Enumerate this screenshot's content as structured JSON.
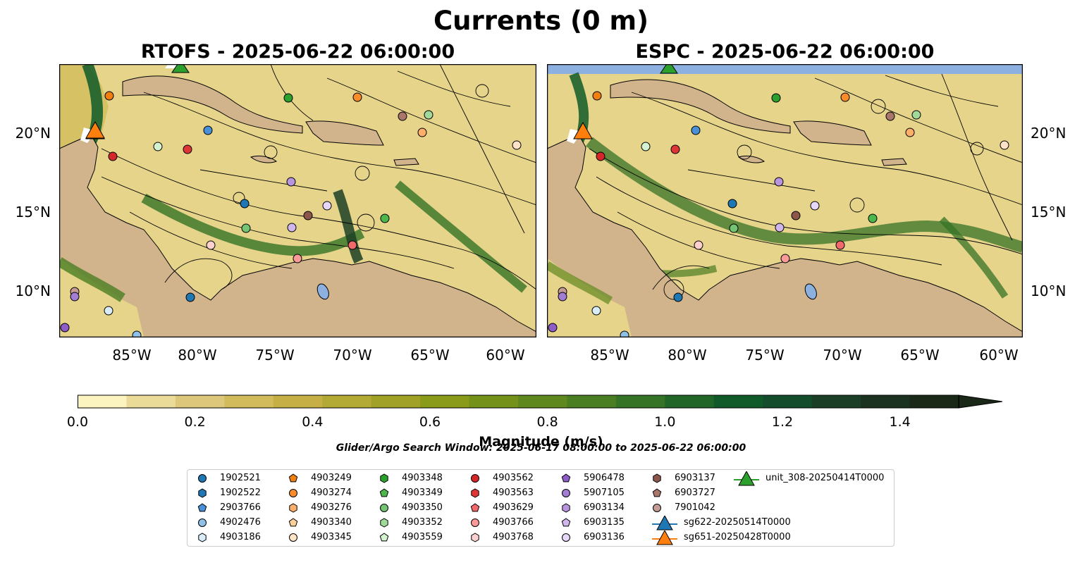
{
  "title": "Currents (0 m)",
  "panels": {
    "left_title": "RTOFS - 2025-06-22 06:00:00",
    "right_title": "ESPC - 2025-06-22 06:00:00"
  },
  "axes": {
    "lat_labels": [
      "20°N",
      "15°N",
      "10°N"
    ],
    "lon_labels": [
      "85°W",
      "80°W",
      "75°W",
      "70°W",
      "65°W",
      "60°W"
    ]
  },
  "colorbar": {
    "label": "Magnitude (m/s)",
    "ticks": [
      "0.0",
      "0.2",
      "0.4",
      "0.6",
      "0.8",
      "1.0",
      "1.2",
      "1.4"
    ],
    "range": [
      0,
      1.5
    ],
    "extend": "max",
    "colors": [
      "#fbf3c0",
      "#eadc98",
      "#ddc77a",
      "#d2bb5a",
      "#c6b045",
      "#b3a935",
      "#a1a027",
      "#8a9a1a",
      "#74911a",
      "#5f881e",
      "#4a7e22",
      "#357326",
      "#1f6628",
      "#0f5a28",
      "#134d2b",
      "#1b3f26",
      "#1c3220",
      "#1a2818"
    ]
  },
  "search_window": "Glider/Argo Search Window: 2025-06-17 08:00:00 to 2025-06-22 06:00:00",
  "legend_items": [
    {
      "label": "1902521",
      "marker": "circle",
      "color": "#1f77b4"
    },
    {
      "label": "1902522",
      "marker": "hexagon",
      "color": "#1f77b4"
    },
    {
      "label": "2903766",
      "marker": "pentagon",
      "color": "#4a90d9"
    },
    {
      "label": "4902476",
      "marker": "circle",
      "color": "#8fc1e8"
    },
    {
      "label": "4903186",
      "marker": "hexagon",
      "color": "#d8ecfa"
    },
    {
      "label": "4903249",
      "marker": "pentagon",
      "color": "#f07f10"
    },
    {
      "label": "4903274",
      "marker": "circle",
      "color": "#fb8c2a"
    },
    {
      "label": "4903276",
      "marker": "hexagon",
      "color": "#fdae6b"
    },
    {
      "label": "4903340",
      "marker": "pentagon",
      "color": "#fdcf9a"
    },
    {
      "label": "4903345",
      "marker": "circle",
      "color": "#fee3c8"
    },
    {
      "label": "4903348",
      "marker": "hexagon",
      "color": "#2ca02c"
    },
    {
      "label": "4903349",
      "marker": "pentagon",
      "color": "#4cb84c"
    },
    {
      "label": "4903350",
      "marker": "circle",
      "color": "#74c476"
    },
    {
      "label": "4903352",
      "marker": "hexagon",
      "color": "#a1d99b"
    },
    {
      "label": "4903559",
      "marker": "pentagon",
      "color": "#d4f2cf"
    },
    {
      "label": "4903562",
      "marker": "circle",
      "color": "#d62728"
    },
    {
      "label": "4903563",
      "marker": "hexagon",
      "color": "#e03535"
    },
    {
      "label": "4903629",
      "marker": "pentagon",
      "color": "#f2696b"
    },
    {
      "label": "4903766",
      "marker": "circle",
      "color": "#fb9a99"
    },
    {
      "label": "4903768",
      "marker": "hexagon",
      "color": "#fcd0cf"
    },
    {
      "label": "5906478",
      "marker": "pentagon",
      "color": "#8e5cc8"
    },
    {
      "label": "5907105",
      "marker": "circle",
      "color": "#a37cd4"
    },
    {
      "label": "6903134",
      "marker": "hexagon",
      "color": "#b994de"
    },
    {
      "label": "6903135",
      "marker": "pentagon",
      "color": "#d1b6ee"
    },
    {
      "label": "6903136",
      "marker": "circle",
      "color": "#e6d6f8"
    },
    {
      "label": "6903137",
      "marker": "hexagon",
      "color": "#8c564b"
    },
    {
      "label": "6903727",
      "marker": "pentagon",
      "color": "#a8766a"
    },
    {
      "label": "7901042",
      "marker": "circle",
      "color": "#c49c94"
    },
    {
      "label": "sg622-20250514T0000",
      "marker": "triangle",
      "color": "#1f77b4"
    },
    {
      "label": "sg651-20250428T0000",
      "marker": "triangle",
      "color": "#ff7f0e"
    },
    {
      "label": "unit_308-20250414T0000",
      "marker": "triangle",
      "color": "#2ca02c"
    }
  ]
}
